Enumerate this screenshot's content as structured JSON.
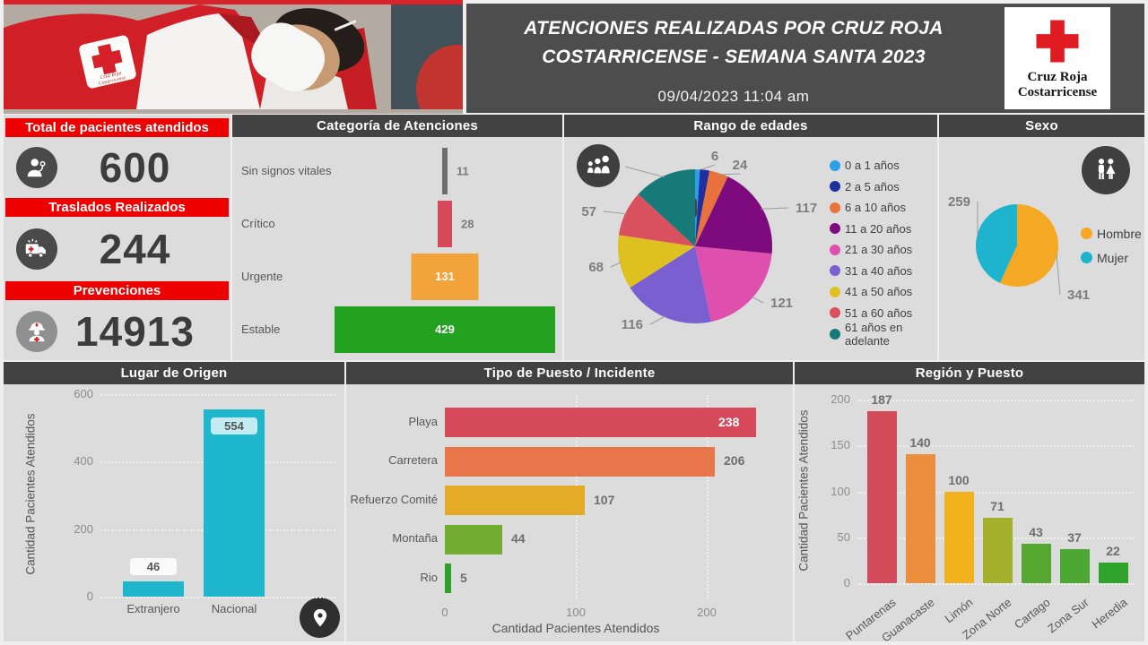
{
  "header": {
    "title_line1": "ATENCIONES REALIZADAS POR CRUZ ROJA",
    "title_line2": "COSTARRICENSE - SEMANA SANTA 2023",
    "datetime": "09/04/2023 11:04 am",
    "logo": {
      "line1": "Cruz Roja",
      "line2": "Costarricense"
    }
  },
  "kpis": [
    {
      "label": "Total de pacientes atendidos",
      "value": "600",
      "icon": "doctor-icon"
    },
    {
      "label": "Traslados Realizados",
      "value": "244",
      "icon": "ambulance-icon"
    },
    {
      "label": "Prevenciones",
      "value": "14913",
      "icon": "worker-icon"
    }
  ],
  "colors": {
    "accent_red": "#ee0000",
    "header_dark": "#424242",
    "panel_bg": "#dcdcdc",
    "title_band": "#4d4d4d"
  },
  "chart_data": [
    {
      "id": "categoria",
      "type": "bar",
      "title": "Categoría de Atenciones",
      "categories": [
        "Sin signos vitales",
        "Crítico",
        "Urgente",
        "Estable"
      ],
      "values": [
        11,
        28,
        131,
        429
      ],
      "colors": [
        "#6f6f6f",
        "#d6495a",
        "#f2a33a",
        "#23a121"
      ],
      "value_label_inside": [
        false,
        false,
        true,
        true
      ],
      "orientation": "funnel-centered"
    },
    {
      "id": "edades",
      "type": "pie",
      "title": "Rango de edades",
      "labels": [
        "0 a 1 años",
        "2 a 5 años",
        "6 a 10 años",
        "11 a 20 años",
        "21 a 30 años",
        "31 a 40 años",
        "41 a 50 años",
        "51 a 60 años",
        "61 años en adelante"
      ],
      "values": [
        6,
        12,
        24,
        117,
        121,
        116,
        68,
        57,
        79
      ],
      "colors": [
        "#2b9fe8",
        "#1f2f9e",
        "#e8713c",
        "#7d0b7d",
        "#de4fae",
        "#7a5fd1",
        "#dfc021",
        "#d9505f",
        "#177a78"
      ],
      "legend_position": "right",
      "icon": "people-icon"
    },
    {
      "id": "sexo",
      "type": "pie",
      "title": "Sexo",
      "labels": [
        "Hombre",
        "Mujer"
      ],
      "values": [
        341,
        259
      ],
      "colors": [
        "#f5a823",
        "#1fb4ce"
      ],
      "legend_position": "right",
      "icon": "male-female-icon"
    },
    {
      "id": "origen",
      "type": "bar",
      "title": "Lugar de Origen",
      "categories": [
        "Extranjero",
        "Nacional"
      ],
      "values": [
        46,
        554
      ],
      "bar_color": "#1fb7ce",
      "ylabel": "Cantidad Pacientes Atendidos",
      "yticks": [
        0,
        200,
        400,
        600
      ],
      "ylim": [
        0,
        600
      ],
      "icon": "location-pin-icon"
    },
    {
      "id": "tipo_puesto",
      "type": "bar",
      "title": "Tipo de Puesto / Incidente",
      "categories": [
        "Playa",
        "Carretera",
        "Refuerzo Comité",
        "Montaña",
        "Rio"
      ],
      "values": [
        238,
        206,
        107,
        44,
        5
      ],
      "colors": [
        "#d6495a",
        "#e8764a",
        "#e4ac26",
        "#72ac30",
        "#2ca327"
      ],
      "xlabel": "Cantidad Pacientes Atendidos",
      "xticks": [
        0,
        100,
        200
      ],
      "xlim": [
        0,
        250
      ],
      "orientation": "horizontal"
    },
    {
      "id": "region",
      "type": "bar",
      "title": "Región y Puesto",
      "categories": [
        "Puntarenas",
        "Guanacaste",
        "Limón",
        "Zona Norte",
        "Cartago",
        "Zona Sur",
        "Heredia"
      ],
      "values": [
        187,
        140,
        100,
        71,
        43,
        37,
        22
      ],
      "colors": [
        "#d14b5b",
        "#ec8e3d",
        "#f2b21d",
        "#a5b02d",
        "#55a82f",
        "#4ca832",
        "#2fa32b"
      ],
      "ylabel": "Cantidad Pacientes Atendidos",
      "yticks": [
        0,
        50,
        100,
        150,
        200
      ],
      "ylim": [
        0,
        200
      ]
    }
  ]
}
